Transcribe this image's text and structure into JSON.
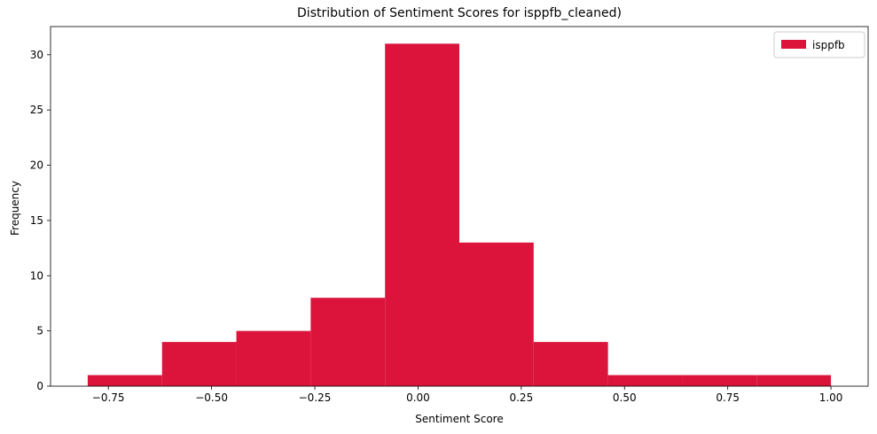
{
  "chart_data": {
    "type": "bar",
    "title": "Distribution of Sentiment Scores for isppfb_cleaned)",
    "xlabel": "Sentiment Score",
    "ylabel": "Frequency",
    "bin_edges": [
      -0.8,
      -0.62,
      -0.44,
      -0.26,
      -0.08,
      0.1,
      0.28,
      0.46,
      0.64,
      0.82,
      1.0
    ],
    "series": [
      {
        "name": "isppfb",
        "color": "#dc143c",
        "values": [
          1,
          4,
          5,
          8,
          31,
          13,
          4,
          1,
          1,
          1
        ]
      }
    ],
    "xlim": [
      -0.89,
      1.09
    ],
    "ylim": [
      0,
      32.55
    ],
    "xticks": [
      -0.75,
      -0.5,
      -0.25,
      0.0,
      0.25,
      0.5,
      0.75,
      1.0
    ],
    "xtick_labels": [
      "−0.75",
      "−0.50",
      "−0.25",
      "0.00",
      "0.25",
      "0.50",
      "0.75",
      "1.00"
    ],
    "yticks": [
      0,
      5,
      10,
      15,
      20,
      25,
      30
    ],
    "ytick_labels": [
      "0",
      "5",
      "10",
      "15",
      "20",
      "25",
      "30"
    ],
    "grid": false,
    "legend_position": "top-right"
  }
}
